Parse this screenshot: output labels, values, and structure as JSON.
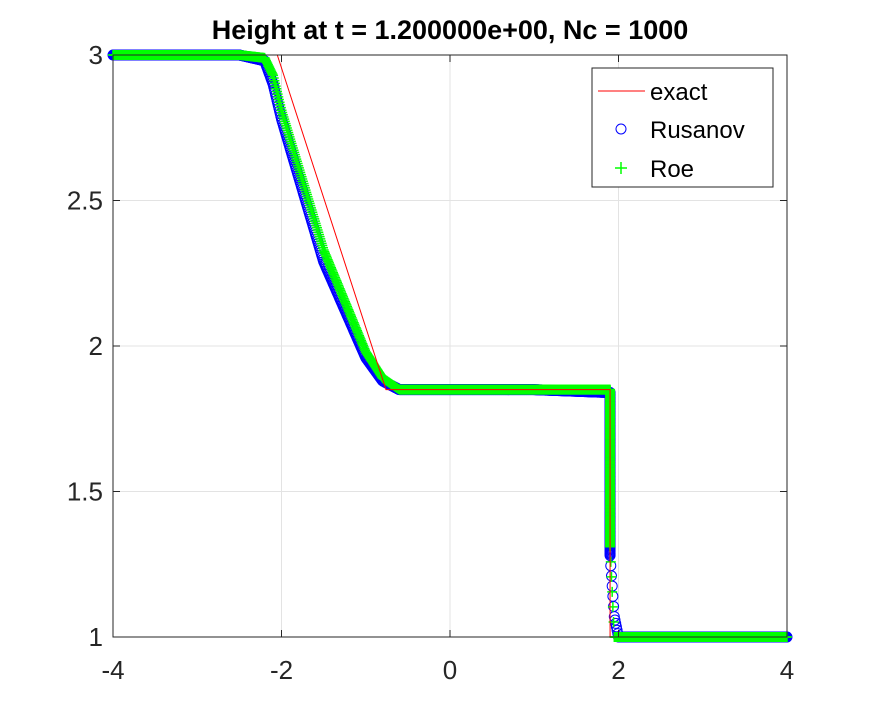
{
  "chart_data": {
    "type": "line",
    "title": "Height at t = 1.200000e+00, Nc = 1000",
    "xlabel": "",
    "ylabel": "",
    "xlim": [
      -4,
      4
    ],
    "ylim": [
      1,
      3
    ],
    "x_ticks": [
      -4,
      -2,
      0,
      2,
      4
    ],
    "x_tick_labels": [
      "-4",
      "-2",
      "0",
      "2",
      "4"
    ],
    "y_ticks": [
      1,
      1.5,
      2,
      2.5,
      3
    ],
    "y_tick_labels": [
      "1",
      "1.5",
      "2",
      "2.5",
      "3"
    ],
    "grid": true,
    "legend_position": "top-right",
    "series": [
      {
        "name": "exact",
        "style": "line",
        "color": "#ff0000",
        "x": [
          -4,
          -2.05,
          -0.76,
          1.9,
          1.9,
          4
        ],
        "y": [
          3,
          3,
          1.85,
          1.85,
          1.0,
          1.0
        ]
      },
      {
        "name": "Rusanov",
        "style": "circle",
        "color": "#0000ff",
        "x": [
          -4,
          -2.5,
          -2.2,
          -2.1,
          -2.0,
          -1.5,
          -1.0,
          -0.8,
          -0.6,
          0,
          1,
          1.9,
          1.9,
          1.9,
          1.9,
          1.9,
          1.95,
          2,
          3,
          4
        ],
        "y": [
          3,
          3,
          2.98,
          2.9,
          2.78,
          2.29,
          1.96,
          1.88,
          1.85,
          1.85,
          1.85,
          1.84,
          1.82,
          1.76,
          1.57,
          1.28,
          1.07,
          1.0,
          1.0,
          1.0
        ]
      },
      {
        "name": "Roe",
        "style": "plus",
        "color": "#00ff00",
        "x": [
          -4,
          -2.5,
          -2.2,
          -2.1,
          -2.0,
          -1.5,
          -1.0,
          -0.8,
          -0.6,
          0,
          1,
          1.9,
          1.9,
          1.9,
          1.95,
          2,
          3,
          4
        ],
        "y": [
          3,
          3,
          2.99,
          2.93,
          2.81,
          2.33,
          1.98,
          1.89,
          1.85,
          1.85,
          1.85,
          1.85,
          1.66,
          1.31,
          1.0,
          1.0,
          1.0,
          1.0
        ]
      }
    ]
  }
}
